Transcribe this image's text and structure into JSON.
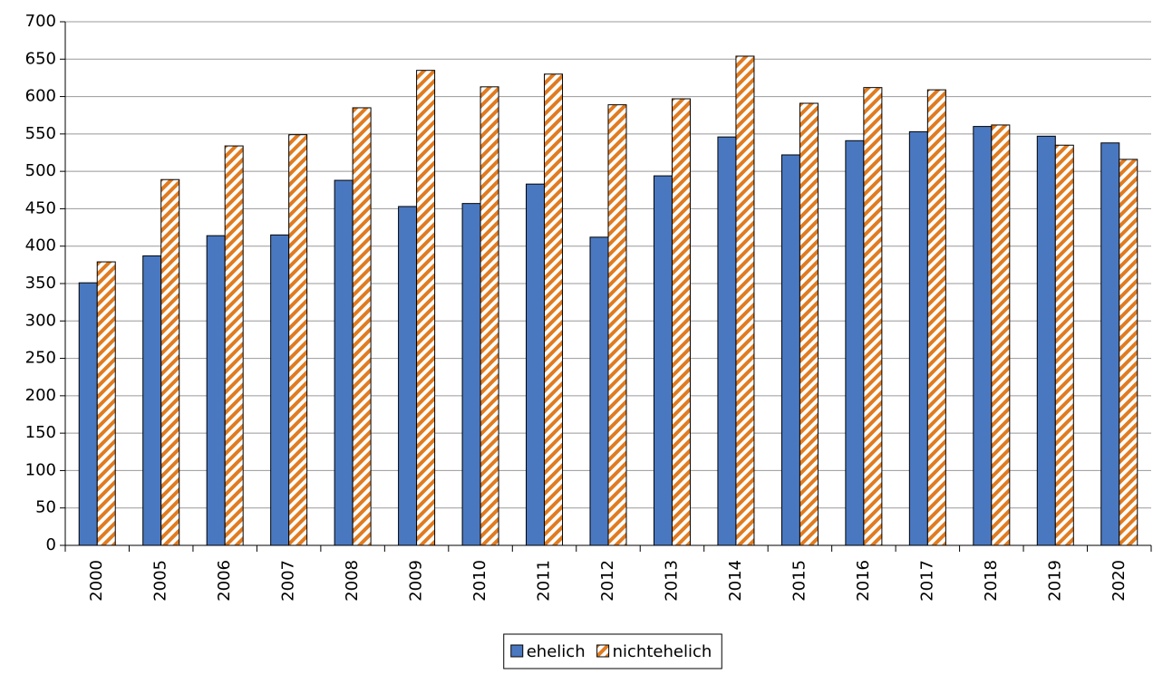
{
  "chart_data": {
    "type": "bar",
    "categories": [
      "2000",
      "2005",
      "2006",
      "2007",
      "2008",
      "2009",
      "2010",
      "2011",
      "2012",
      "2013",
      "2014",
      "2015",
      "2016",
      "2017",
      "2018",
      "2019",
      "2020"
    ],
    "series": [
      {
        "name": "ehelich",
        "color": "#4a78c0",
        "values": [
          351,
          387,
          414,
          415,
          488,
          453,
          457,
          483,
          412,
          494,
          546,
          522,
          541,
          553,
          560,
          547,
          538
        ]
      },
      {
        "name": "nichtehelich",
        "color": "#e07b20",
        "pattern": "hatch",
        "values": [
          379,
          489,
          534,
          549,
          585,
          635,
          613,
          630,
          589,
          597,
          654,
          591,
          612,
          609,
          562,
          535,
          516
        ]
      }
    ],
    "ylim": [
      0,
      700
    ],
    "yticks": [
      0,
      50,
      100,
      150,
      200,
      250,
      300,
      350,
      400,
      450,
      500,
      550,
      600,
      650,
      700
    ],
    "grid": true,
    "legend": "bottom"
  }
}
